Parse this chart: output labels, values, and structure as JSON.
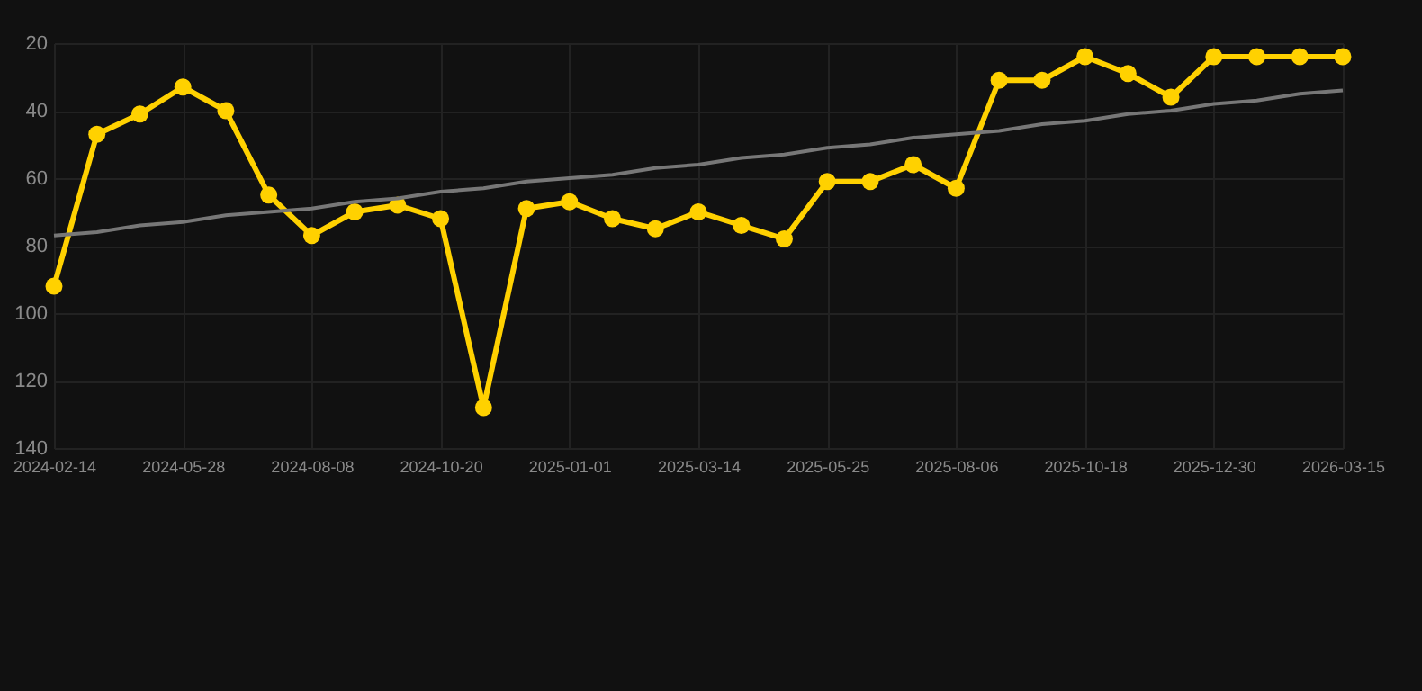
{
  "chart_data": {
    "type": "line",
    "categories": [
      "2024-02-14",
      null,
      null,
      "2024-05-28",
      null,
      null,
      "2024-08-08",
      null,
      null,
      "2024-10-20",
      null,
      null,
      "2025-01-01",
      null,
      null,
      "2025-03-14",
      null,
      null,
      "2025-05-25",
      null,
      null,
      "2025-08-06",
      null,
      null,
      "2025-10-18",
      null,
      null,
      "2025-12-30",
      null,
      null,
      "2026-03-15"
    ],
    "series": [
      {
        "color": "#ffd100",
        "marker": "circle",
        "values": [
          92,
          47,
          41,
          33,
          40,
          65,
          77,
          70,
          68,
          72,
          128,
          69,
          67,
          72,
          75,
          70,
          74,
          78,
          61,
          61,
          56,
          63,
          31,
          31,
          24,
          29,
          36,
          24,
          24,
          24,
          24
        ]
      },
      {
        "color": "#777777",
        "marker": "none",
        "values": [
          77,
          76,
          74,
          73,
          71,
          70,
          69,
          67,
          66,
          64,
          63,
          61,
          60,
          59,
          57,
          56,
          54,
          53,
          51,
          50,
          48,
          47,
          46,
          44,
          43,
          41,
          40,
          38,
          37,
          35,
          34
        ]
      }
    ],
    "ylim": [
      140,
      20
    ],
    "yticks": [
      20,
      40,
      60,
      80,
      100,
      120,
      140
    ],
    "grid": true
  }
}
